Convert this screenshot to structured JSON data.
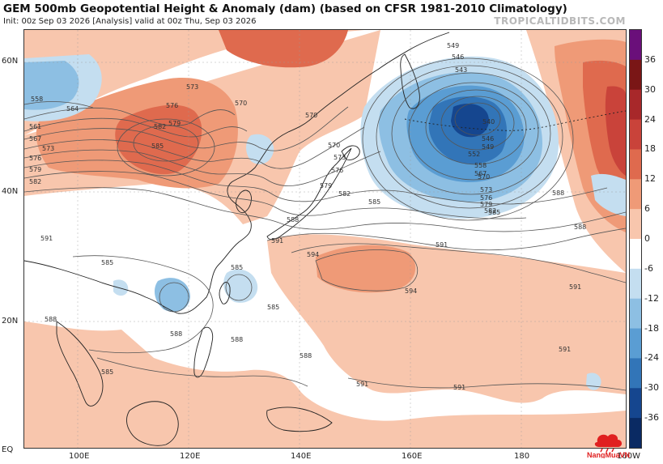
{
  "header": {
    "title": "GEM 500mb Geopotential Height & Anomaly (dam) (based on CFSR 1981-2010 Climatology)",
    "subtitle": "Init: 00z Sep 03 2026   [Analysis]   valid at 00z Thu, Sep 03 2026",
    "site": "TROPICALTIDBITS.COM"
  },
  "axes": {
    "lat_labels": [
      "60N",
      "40N",
      "20N",
      "EQ"
    ],
    "lon_labels": [
      "100E",
      "120E",
      "140E",
      "160E",
      "180",
      "160W"
    ]
  },
  "colorbar": {
    "labels": [
      "36",
      "30",
      "24",
      "18",
      "12",
      "6",
      "0",
      "-6",
      "-12",
      "-18",
      "-24",
      "-30",
      "-36"
    ],
    "colors": [
      "#6a0f7a",
      "#7a1616",
      "#a8282a",
      "#c9433a",
      "#df6a4e",
      "#ef9a77",
      "#f8c6ad",
      "#ffffff",
      "#c4def0",
      "#8dbfe3",
      "#5a9dd3",
      "#3275b8",
      "#15468f",
      "#0a2a63"
    ]
  },
  "contour_labels": [
    "558",
    "564",
    "561",
    "567",
    "573",
    "576",
    "579",
    "582",
    "573",
    "576",
    "579",
    "582",
    "585",
    "570",
    "570",
    "549",
    "546",
    "543",
    "540",
    "546",
    "549",
    "552",
    "558",
    "567",
    "570",
    "573",
    "576",
    "579",
    "582",
    "585",
    "570",
    "573",
    "576",
    "579",
    "582",
    "585",
    "588",
    "588",
    "588",
    "591",
    "591",
    "594",
    "594",
    "591",
    "591",
    "591",
    "591",
    "591",
    "585",
    "585",
    "585",
    "588",
    "588",
    "588",
    "588",
    "585",
    "588",
    "588"
  ],
  "watermark": {
    "text": "NangMuaVN"
  }
}
